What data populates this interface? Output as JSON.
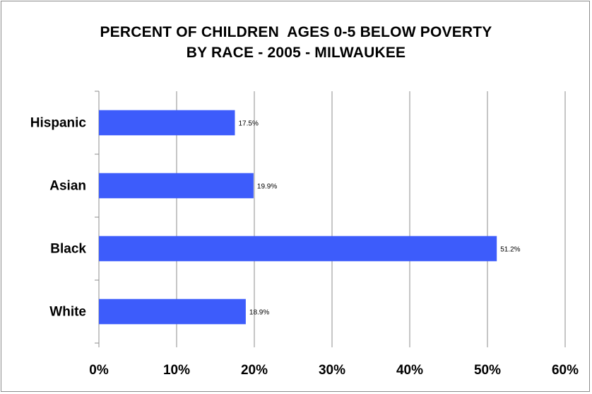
{
  "chart_data": {
    "type": "bar",
    "orientation": "horizontal",
    "title_lines": [
      "PERCENT OF CHILDREN  AGES 0-5 BELOW POVERTY",
      "BY RACE - 2005 - MILWAUKEE"
    ],
    "categories": [
      "Hispanic",
      "Asian",
      "Black",
      "White"
    ],
    "values": [
      17.5,
      19.9,
      51.2,
      18.9
    ],
    "data_labels": [
      "17.5%",
      "19.9%",
      "51.2%",
      "18.9%"
    ],
    "xlim": [
      0,
      60
    ],
    "x_ticks": [
      0,
      10,
      20,
      30,
      40,
      50,
      60
    ],
    "x_tick_labels": [
      "0%",
      "10%",
      "20%",
      "30%",
      "40%",
      "50%",
      "60%"
    ],
    "grid": "vertical",
    "legend": "none",
    "bar_color": "#3d5cfb"
  }
}
